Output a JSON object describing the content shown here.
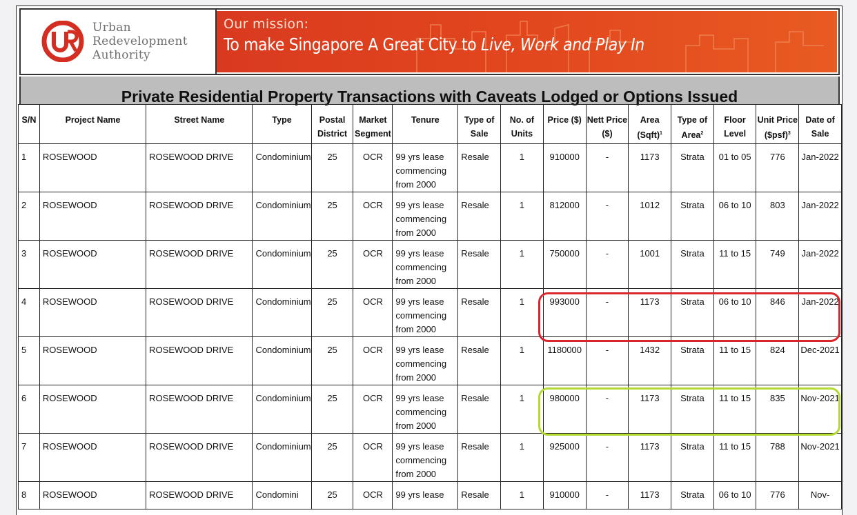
{
  "header": {
    "org_name_lines": [
      "Urban",
      "Redevelopment",
      "Authority"
    ],
    "mission_label": "Our mission:",
    "mission_text_plain": "To make Singapore A Great City to ",
    "mission_text_italic": "Live, Work and Play In"
  },
  "report_title": "Private Residential Property Transactions with Caveats Lodged or Options Issued",
  "table": {
    "columns": [
      {
        "key": "sn",
        "label": "S/N"
      },
      {
        "key": "project",
        "label": "Project Name"
      },
      {
        "key": "street",
        "label": "Street Name"
      },
      {
        "key": "type",
        "label": "Type"
      },
      {
        "key": "district",
        "label": "Postal District"
      },
      {
        "key": "segment",
        "label": "Market Segment"
      },
      {
        "key": "tenure",
        "label": "Tenure"
      },
      {
        "key": "sale_type",
        "label": "Type of Sale"
      },
      {
        "key": "units",
        "label": "No. of Units"
      },
      {
        "key": "price",
        "label": "Price ($)"
      },
      {
        "key": "nett",
        "label": "Nett Price ($)"
      },
      {
        "key": "area",
        "label": "Area (Sqft)",
        "sup": "1"
      },
      {
        "key": "area_type",
        "label": "Type of Area",
        "sup": "2"
      },
      {
        "key": "floor",
        "label": "Floor Level"
      },
      {
        "key": "psf",
        "label": "Unit Price ($psf)",
        "sup": "3"
      },
      {
        "key": "date",
        "label": "Date of Sale"
      }
    ],
    "rows": [
      {
        "sn": "1",
        "project": "ROSEWOOD",
        "street": "ROSEWOOD DRIVE",
        "type": "Condominium",
        "district": "25",
        "segment": "OCR",
        "tenure": "99 yrs lease commencing from 2000",
        "sale_type": "Resale",
        "units": "1",
        "price": "910000",
        "nett": "-",
        "area": "1173",
        "area_type": "Strata",
        "floor": "01 to 05",
        "psf": "776",
        "date": "Jan-2022"
      },
      {
        "sn": "2",
        "project": "ROSEWOOD",
        "street": "ROSEWOOD DRIVE",
        "type": "Condominium",
        "district": "25",
        "segment": "OCR",
        "tenure": "99 yrs lease commencing from 2000",
        "sale_type": "Resale",
        "units": "1",
        "price": "812000",
        "nett": "-",
        "area": "1012",
        "area_type": "Strata",
        "floor": "06 to 10",
        "psf": "803",
        "date": "Jan-2022"
      },
      {
        "sn": "3",
        "project": "ROSEWOOD",
        "street": "ROSEWOOD DRIVE",
        "type": "Condominium",
        "district": "25",
        "segment": "OCR",
        "tenure": "99 yrs lease commencing from 2000",
        "sale_type": "Resale",
        "units": "1",
        "price": "750000",
        "nett": "-",
        "area": "1001",
        "area_type": "Strata",
        "floor": "11 to 15",
        "psf": "749",
        "date": "Jan-2022"
      },
      {
        "sn": "4",
        "project": "ROSEWOOD",
        "street": "ROSEWOOD DRIVE",
        "type": "Condominium",
        "district": "25",
        "segment": "OCR",
        "tenure": "99 yrs lease commencing from 2000",
        "sale_type": "Resale",
        "units": "1",
        "price": "993000",
        "nett": "-",
        "area": "1173",
        "area_type": "Strata",
        "floor": "06 to 10",
        "psf": "846",
        "date": "Jan-2022"
      },
      {
        "sn": "5",
        "project": "ROSEWOOD",
        "street": "ROSEWOOD DRIVE",
        "type": "Condominium",
        "district": "25",
        "segment": "OCR",
        "tenure": "99 yrs lease commencing from 2000",
        "sale_type": "Resale",
        "units": "1",
        "price": "1180000",
        "nett": "-",
        "area": "1432",
        "area_type": "Strata",
        "floor": "11 to 15",
        "psf": "824",
        "date": "Dec-2021"
      },
      {
        "sn": "6",
        "project": "ROSEWOOD",
        "street": "ROSEWOOD DRIVE",
        "type": "Condominium",
        "district": "25",
        "segment": "OCR",
        "tenure": "99 yrs lease commencing from 2000",
        "sale_type": "Resale",
        "units": "1",
        "price": "980000",
        "nett": "-",
        "area": "1173",
        "area_type": "Strata",
        "floor": "11 to 15",
        "psf": "835",
        "date": "Nov-2021"
      },
      {
        "sn": "7",
        "project": "ROSEWOOD",
        "street": "ROSEWOOD DRIVE",
        "type": "Condominium",
        "district": "25",
        "segment": "OCR",
        "tenure": "99 yrs lease commencing from 2000",
        "sale_type": "Resale",
        "units": "1",
        "price": "925000",
        "nett": "-",
        "area": "1173",
        "area_type": "Strata",
        "floor": "11 to 15",
        "psf": "788",
        "date": "Nov-2021"
      },
      {
        "sn": "8",
        "project": "ROSEWOOD",
        "street": "ROSEWOOD DRIVE",
        "type": "Condomini",
        "district": "25",
        "segment": "OCR",
        "tenure": "99 yrs lease",
        "sale_type": "Resale",
        "units": "1",
        "price": "910000",
        "nett": "-",
        "area": "1173",
        "area_type": "Strata",
        "floor": "06 to 10",
        "psf": "776",
        "date": "Nov-"
      }
    ]
  },
  "annotations": [
    {
      "name": "red-highlight",
      "color": "#d8262c",
      "row_sn": "4"
    },
    {
      "name": "green-highlight",
      "color": "#b3d932",
      "row_sn": "6"
    }
  ],
  "colors": {
    "brand_red": "#d42e22",
    "banner_orange": "#e2471e",
    "title_gray": "#bdbdbd"
  }
}
